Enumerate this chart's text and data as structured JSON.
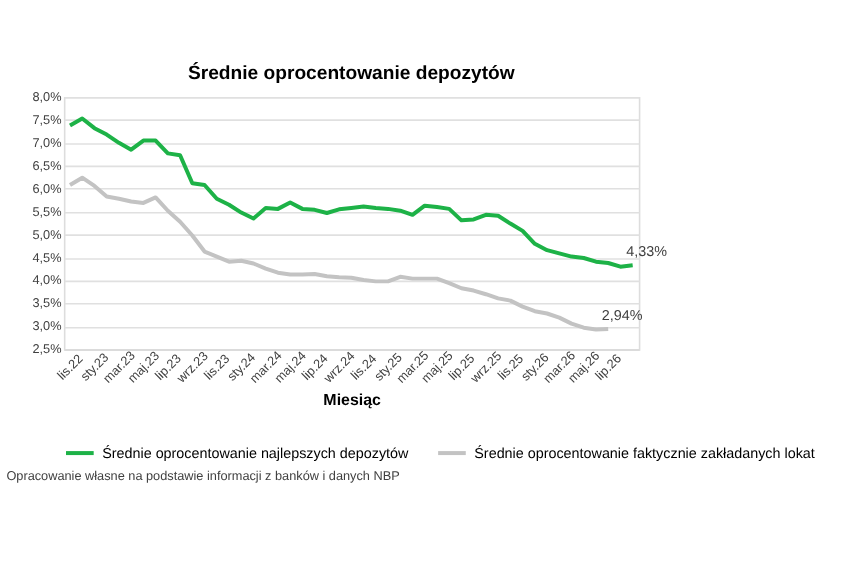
{
  "chart_data": {
    "type": "line",
    "title": "Średnie oprocentowanie depozytów",
    "xlabel": "Miesiąc",
    "categories": [
      "lis.22",
      null,
      "sty.23",
      null,
      "mar.23",
      null,
      "maj.23",
      null,
      "lip.23",
      null,
      "wrz.23",
      null,
      "lis.23",
      null,
      "sty.24",
      null,
      "mar.24",
      null,
      "maj.24",
      null,
      "lip.24",
      null,
      "wrz.24",
      null,
      "lis.24",
      null,
      "sty.25",
      null,
      "mar.25",
      null,
      "maj.25",
      null,
      "lip.25",
      null,
      "wrz.25",
      null,
      "lis.25",
      null,
      "sty.26",
      null,
      "mar.26",
      null,
      "maj.26",
      null,
      "lip.26",
      null,
      null
    ],
    "series": [
      {
        "name": "Średnie oprocentowanie najlepszych depozytów",
        "color": "#1db247",
        "values": [
          7.38,
          7.53,
          7.32,
          7.18,
          7.0,
          6.85,
          7.05,
          7.05,
          6.77,
          6.73,
          6.12,
          6.08,
          5.78,
          5.65,
          5.48,
          5.35,
          5.58,
          5.56,
          5.7,
          5.56,
          5.54,
          5.47,
          5.55,
          5.58,
          5.61,
          5.58,
          5.56,
          5.52,
          5.43,
          5.63,
          5.6,
          5.56,
          5.31,
          5.33,
          5.43,
          5.41,
          5.24,
          5.08,
          4.8,
          4.66,
          4.59,
          4.52,
          4.49,
          4.41,
          4.38,
          4.3,
          4.33
        ],
        "value_labels": [
          null,
          null,
          null,
          null,
          null,
          null,
          null,
          null,
          null,
          null,
          null,
          null,
          null,
          null,
          null,
          null,
          null,
          null,
          null,
          null,
          null,
          null,
          null,
          null,
          null,
          null,
          null,
          null,
          null,
          null,
          null,
          null,
          null,
          null,
          null,
          null,
          null,
          null,
          null,
          null,
          null,
          null,
          null,
          null,
          null,
          null,
          "4,33%"
        ]
      },
      {
        "name": "Średnie oprocentowanie faktycznie zakładanych lokat",
        "color": "#c3c3c3",
        "values": [
          6.08,
          6.24,
          6.06,
          5.83,
          5.78,
          5.72,
          5.69,
          5.81,
          5.52,
          5.28,
          4.98,
          4.63,
          4.52,
          4.41,
          4.43,
          4.37,
          4.26,
          4.17,
          4.13,
          4.13,
          4.14,
          4.09,
          4.07,
          4.06,
          4.01,
          3.98,
          3.98,
          4.08,
          4.04,
          4.04,
          4.04,
          3.94,
          3.83,
          3.78,
          3.7,
          3.61,
          3.56,
          3.43,
          3.33,
          3.28,
          3.19,
          3.06,
          2.97,
          2.93,
          2.94,
          null,
          null
        ],
        "value_labels": [
          null,
          null,
          null,
          null,
          null,
          null,
          null,
          null,
          null,
          null,
          null,
          null,
          null,
          null,
          null,
          null,
          null,
          null,
          null,
          null,
          null,
          null,
          null,
          null,
          null,
          null,
          null,
          null,
          null,
          null,
          null,
          null,
          null,
          null,
          null,
          null,
          null,
          null,
          null,
          null,
          null,
          null,
          null,
          null,
          "2,94%",
          null,
          null
        ]
      }
    ],
    "ylim": [
      2.5,
      8.0
    ],
    "yticks": [
      {
        "value": 2.5,
        "label": "2,5%"
      },
      {
        "value": 3.0,
        "label": "3,0%"
      },
      {
        "value": 3.5,
        "label": "3,5%"
      },
      {
        "value": 4.0,
        "label": "4,0%"
      },
      {
        "value": 4.5,
        "label": "4,5%"
      },
      {
        "value": 5.0,
        "label": "5,0%"
      },
      {
        "value": 5.5,
        "label": "5,5%"
      },
      {
        "value": 6.0,
        "label": "6,0%"
      },
      {
        "value": 6.5,
        "label": "6,5%"
      },
      {
        "value": 7.0,
        "label": "7,0%"
      },
      {
        "value": 7.5,
        "label": "7,5%"
      },
      {
        "value": 8.0,
        "label": "8,0%"
      }
    ],
    "grid": "y",
    "legend": "bottom",
    "marker": "none",
    "line_style": "solid",
    "annotations": [
      "Opracowanie własne na podstawie informacji z banków i danych NBP"
    ]
  }
}
